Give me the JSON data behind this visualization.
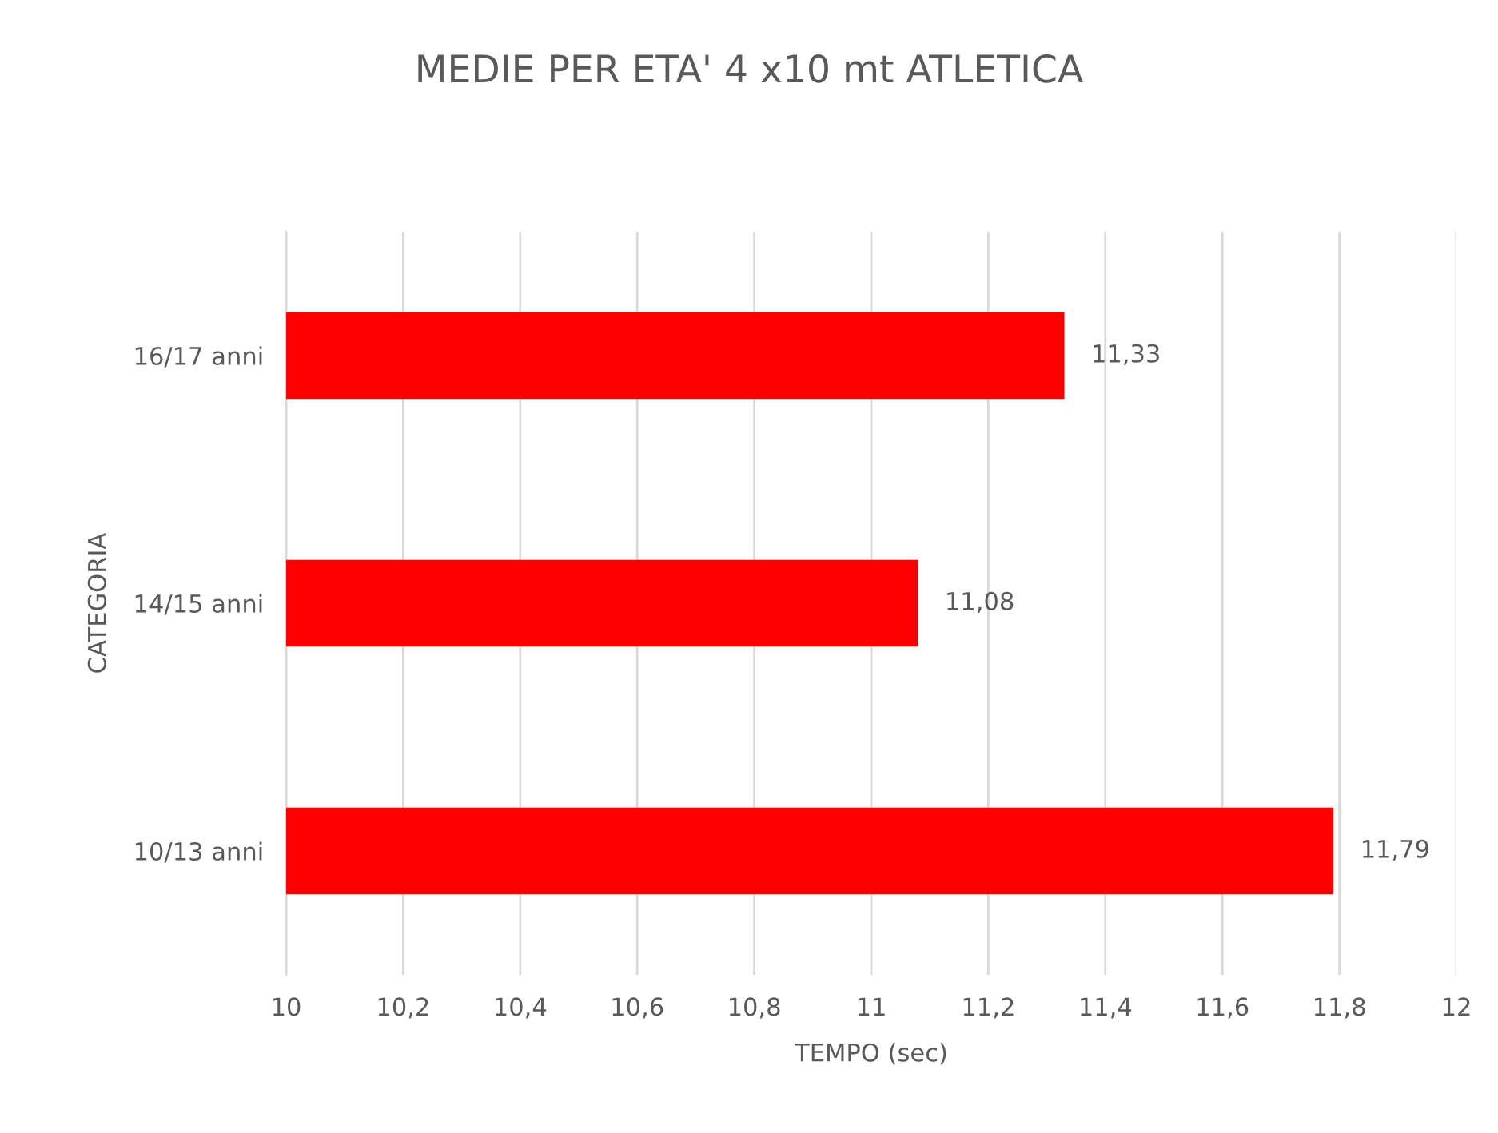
{
  "chart_data": {
    "type": "bar",
    "orientation": "horizontal",
    "title": "MEDIE PER ETA' 4 x10 mt ATLETICA",
    "xlabel": "TEMPO (sec)",
    "ylabel": "CATEGORIA",
    "categories": [
      "16/17 anni",
      "14/15 anni",
      "10/13 anni"
    ],
    "values": [
      11.33,
      11.08,
      11.79
    ],
    "value_labels": [
      "11,33",
      "11,08",
      "11,79"
    ],
    "color": "#ff0000",
    "xlim": [
      10,
      12
    ],
    "xticks": [
      10,
      {
        "value": 10.2,
        "label": "10,2"
      },
      {
        "value": 10.4,
        "label": "10,4"
      },
      {
        "value": 10.6,
        "label": "10,6"
      },
      {
        "value": 10.8,
        "label": "10,8"
      },
      11,
      {
        "value": 11.2,
        "label": "11,2"
      },
      {
        "value": 11.4,
        "label": "11,4"
      },
      {
        "value": 11.6,
        "label": "11,6"
      },
      {
        "value": 11.8,
        "label": "11,8"
      },
      12
    ],
    "grid": "x",
    "legend": false
  }
}
